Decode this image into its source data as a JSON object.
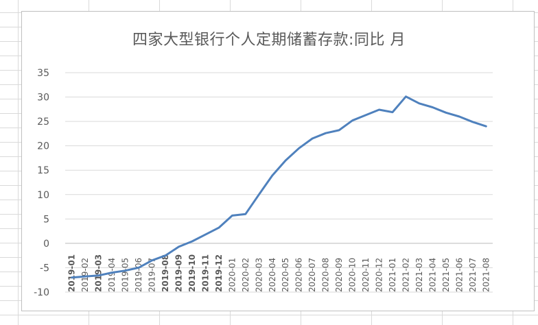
{
  "chart_data": {
    "type": "line",
    "title": "四家大型银行个人定期储蓄存款:同比 月",
    "xlabel": "",
    "ylabel": "",
    "ylim": [
      -10,
      35
    ],
    "yticks": [
      35,
      30,
      25,
      20,
      15,
      10,
      5,
      0,
      -5,
      -10
    ],
    "grid": true,
    "legend": "none",
    "line_color": "#4f81bd",
    "categories": [
      "2019-01",
      "2019-02",
      "2019-03",
      "2019-04",
      "2019-05",
      "2019-06",
      "2019-07",
      "2019-08",
      "2019-09",
      "2019-10",
      "2019-11",
      "2019-12",
      "2020-01",
      "2020-02",
      "2020-03",
      "2020-04",
      "2020-05",
      "2020-06",
      "2020-07",
      "2020-08",
      "2020-09",
      "2020-10",
      "2020-11",
      "2020-12",
      "2021-01",
      "2021-02",
      "2021-03",
      "2021-04",
      "2021-05",
      "2021-06",
      "2021-07",
      "2021-08"
    ],
    "bold_categories": [
      "2019-01",
      "2019-03",
      "2019-08",
      "2019-09",
      "2019-10",
      "2019-11",
      "2019-12"
    ],
    "values": [
      -7.0,
      -6.8,
      -6.6,
      -6.0,
      -5.6,
      -5.0,
      -3.5,
      -2.5,
      -0.7,
      0.4,
      1.8,
      3.2,
      5.7,
      6.0,
      10.0,
      13.9,
      17.0,
      19.5,
      21.5,
      22.6,
      23.2,
      25.2,
      26.3,
      27.4,
      26.9,
      30.1,
      28.7,
      27.9,
      26.8,
      26.0,
      24.9,
      24.0
    ]
  }
}
